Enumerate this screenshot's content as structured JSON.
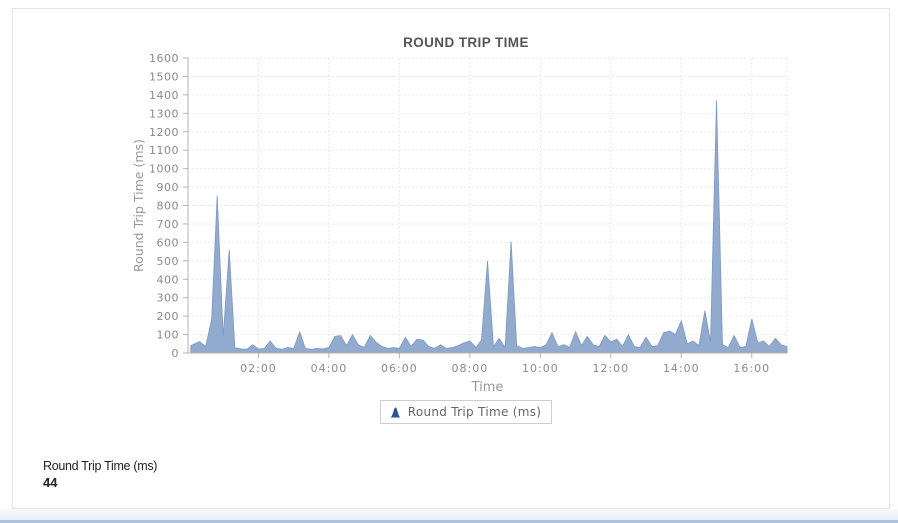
{
  "summary": {
    "label": "Round Trip Time (ms)",
    "value": "44"
  },
  "colors": {
    "area_fill": "#91aacd",
    "area_stroke": "#7d9ac2",
    "grid": "#e9e9e9",
    "axis": "#b3b3b3",
    "tick_label": "#8a8a8a",
    "axis_title": "#999999",
    "title": "#555657",
    "legend_marker": "#2a5390",
    "footer_bar": "#a9c4e2"
  },
  "chart_data": {
    "type": "area",
    "title": "ROUND TRIP TIME",
    "xlabel": "Time",
    "ylabel": "Round Trip Time (ms)",
    "ylim": [
      0,
      1600
    ],
    "y_tick_step": 100,
    "x_domain_hours": [
      0,
      17
    ],
    "x_ticks": [
      {
        "hour": 2,
        "label": "02:00"
      },
      {
        "hour": 4,
        "label": "04:00"
      },
      {
        "hour": 6,
        "label": "06:00"
      },
      {
        "hour": 8,
        "label": "08:00"
      },
      {
        "hour": 10,
        "label": "10:00"
      },
      {
        "hour": 12,
        "label": "12:00"
      },
      {
        "hour": 14,
        "label": "14:00"
      },
      {
        "hour": 16,
        "label": "16:00"
      }
    ],
    "grid": true,
    "legend": {
      "label": "Round Trip Time (ms)",
      "position": "bottom"
    },
    "series": [
      {
        "name": "Round Trip Time (ms)",
        "points": [
          [
            0.08,
            40
          ],
          [
            0.17,
            48
          ],
          [
            0.33,
            62
          ],
          [
            0.5,
            35
          ],
          [
            0.67,
            180
          ],
          [
            0.83,
            855
          ],
          [
            1.0,
            90
          ],
          [
            1.17,
            560
          ],
          [
            1.33,
            28
          ],
          [
            1.5,
            22
          ],
          [
            1.67,
            20
          ],
          [
            1.83,
            45
          ],
          [
            2.0,
            22
          ],
          [
            2.17,
            25
          ],
          [
            2.33,
            65
          ],
          [
            2.5,
            25
          ],
          [
            2.67,
            20
          ],
          [
            2.83,
            30
          ],
          [
            3.0,
            25
          ],
          [
            3.17,
            115
          ],
          [
            3.33,
            25
          ],
          [
            3.5,
            20
          ],
          [
            3.67,
            25
          ],
          [
            3.83,
            22
          ],
          [
            4.0,
            30
          ],
          [
            4.17,
            90
          ],
          [
            4.33,
            95
          ],
          [
            4.5,
            40
          ],
          [
            4.67,
            100
          ],
          [
            4.83,
            45
          ],
          [
            5.0,
            30
          ],
          [
            5.17,
            95
          ],
          [
            5.33,
            60
          ],
          [
            5.5,
            35
          ],
          [
            5.67,
            25
          ],
          [
            5.83,
            30
          ],
          [
            6.0,
            25
          ],
          [
            6.17,
            85
          ],
          [
            6.33,
            35
          ],
          [
            6.5,
            75
          ],
          [
            6.67,
            70
          ],
          [
            6.83,
            35
          ],
          [
            7.0,
            25
          ],
          [
            7.17,
            45
          ],
          [
            7.33,
            25
          ],
          [
            7.5,
            30
          ],
          [
            7.67,
            40
          ],
          [
            7.83,
            55
          ],
          [
            8.0,
            65
          ],
          [
            8.17,
            30
          ],
          [
            8.33,
            70
          ],
          [
            8.5,
            500
          ],
          [
            8.67,
            35
          ],
          [
            8.83,
            80
          ],
          [
            9.0,
            30
          ],
          [
            9.17,
            605
          ],
          [
            9.33,
            40
          ],
          [
            9.5,
            25
          ],
          [
            9.67,
            30
          ],
          [
            9.83,
            35
          ],
          [
            10.0,
            30
          ],
          [
            10.17,
            45
          ],
          [
            10.33,
            110
          ],
          [
            10.5,
            35
          ],
          [
            10.67,
            45
          ],
          [
            10.83,
            30
          ],
          [
            11.0,
            115
          ],
          [
            11.17,
            40
          ],
          [
            11.33,
            90
          ],
          [
            11.5,
            45
          ],
          [
            11.67,
            35
          ],
          [
            11.83,
            95
          ],
          [
            12.0,
            60
          ],
          [
            12.17,
            75
          ],
          [
            12.33,
            35
          ],
          [
            12.5,
            100
          ],
          [
            12.67,
            35
          ],
          [
            12.83,
            30
          ],
          [
            13.0,
            85
          ],
          [
            13.17,
            35
          ],
          [
            13.33,
            40
          ],
          [
            13.5,
            110
          ],
          [
            13.67,
            120
          ],
          [
            13.83,
            100
          ],
          [
            14.0,
            175
          ],
          [
            14.17,
            50
          ],
          [
            14.33,
            65
          ],
          [
            14.5,
            40
          ],
          [
            14.67,
            230
          ],
          [
            14.83,
            60
          ],
          [
            15.0,
            1370
          ],
          [
            15.17,
            45
          ],
          [
            15.33,
            30
          ],
          [
            15.5,
            95
          ],
          [
            15.67,
            30
          ],
          [
            15.83,
            35
          ],
          [
            16.0,
            185
          ],
          [
            16.17,
            55
          ],
          [
            16.33,
            65
          ],
          [
            16.5,
            35
          ],
          [
            16.67,
            80
          ],
          [
            16.83,
            45
          ],
          [
            17.0,
            35
          ]
        ]
      }
    ]
  }
}
